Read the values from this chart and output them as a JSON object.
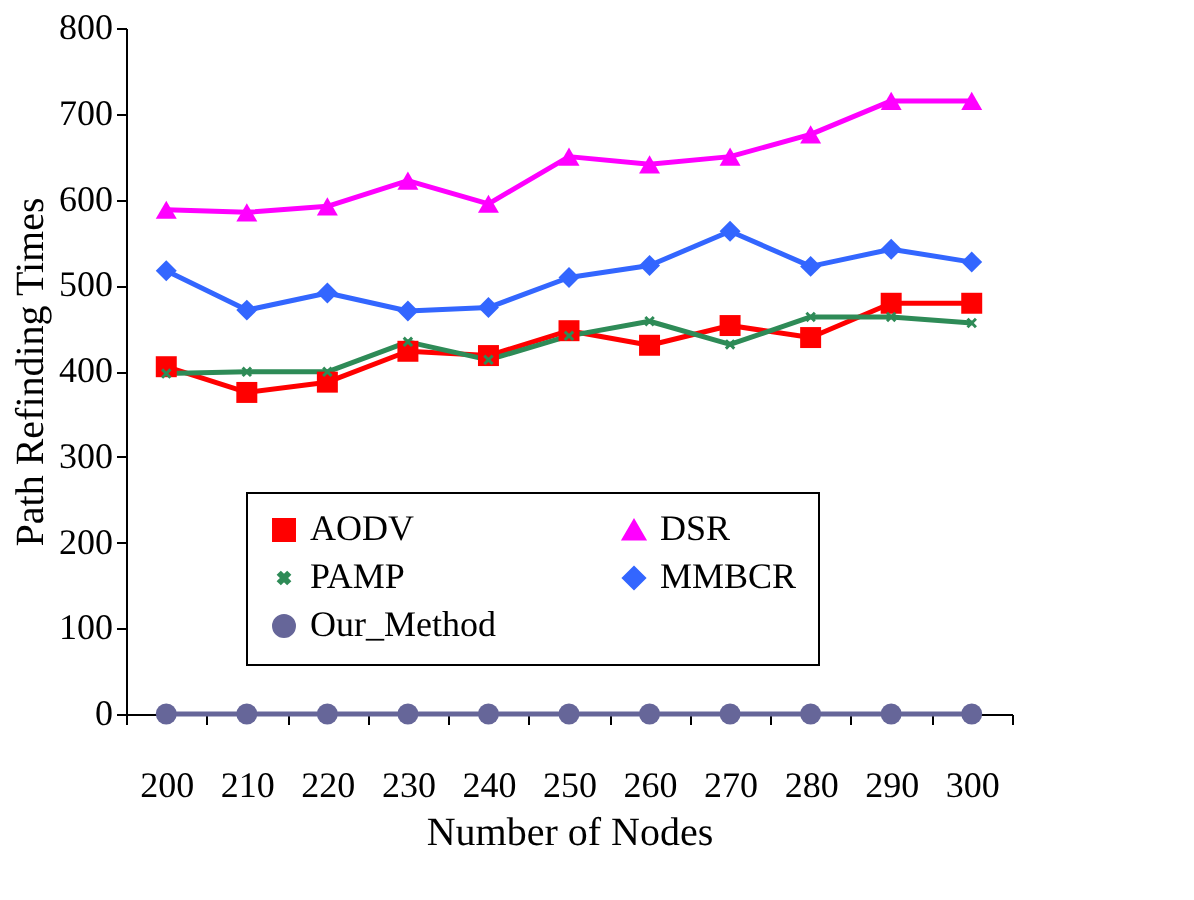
{
  "chart_data": {
    "type": "line",
    "xlabel": "Number of Nodes",
    "ylabel": "Path Refinding Times",
    "categories": [
      "200",
      "210",
      "220",
      "230",
      "240",
      "250",
      "260",
      "270",
      "280",
      "290",
      "300"
    ],
    "ylim": [
      0,
      800
    ],
    "yticks": [
      0,
      100,
      200,
      300,
      400,
      500,
      600,
      700,
      800
    ],
    "grid": false,
    "legend": "bottom",
    "line_style": "solid",
    "series": [
      {
        "name": "AODV",
        "color": "#ff0000",
        "marker": "square",
        "values": [
          405,
          375,
          387,
          423,
          418,
          447,
          430,
          453,
          439,
          479,
          479
        ]
      },
      {
        "name": "DSR",
        "color": "#ff00ff",
        "marker": "triangle",
        "values": [
          588,
          585,
          592,
          622,
          595,
          650,
          641,
          650,
          676,
          715,
          715
        ]
      },
      {
        "name": "PAMP",
        "color": "#2e8b57",
        "marker": "cross",
        "values": [
          397,
          399,
          399,
          434,
          413,
          441,
          458,
          431,
          463,
          463,
          456
        ]
      },
      {
        "name": "MMBCR",
        "color": "#3366ff",
        "marker": "diamond",
        "values": [
          517,
          471,
          491,
          470,
          474,
          509,
          523,
          563,
          522,
          542,
          527
        ]
      },
      {
        "name": "Our_Method",
        "color": "#666699",
        "marker": "circle",
        "values": [
          0,
          0,
          0,
          0,
          0,
          0,
          0,
          0,
          0,
          0,
          0
        ]
      }
    ]
  }
}
